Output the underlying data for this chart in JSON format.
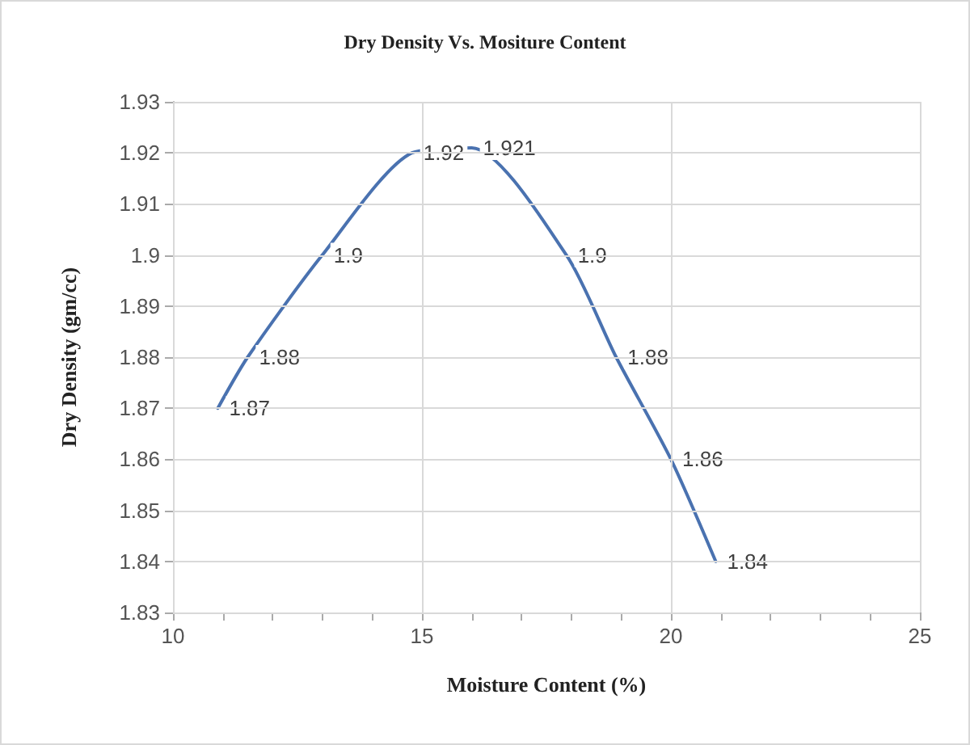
{
  "chart_data": {
    "type": "line",
    "title": "Dry Density Vs. Mositure Content",
    "xlabel": "Moisture Content (%)",
    "ylabel": "Dry Density (gm/cc)",
    "x": [
      10.9,
      11.5,
      13.0,
      14.8,
      16.0,
      17.9,
      18.9,
      20.0,
      20.9
    ],
    "series": [
      {
        "color": "#4a72b0",
        "values": [
          1.87,
          1.88,
          1.9,
          1.92,
          1.921,
          1.9,
          1.88,
          1.86,
          1.84
        ]
      }
    ],
    "xlim": [
      10,
      25
    ],
    "xticks": [
      10,
      {
        "value": 11,
        "label": null
      },
      {
        "value": 12,
        "label": null
      },
      {
        "value": 13,
        "label": null
      },
      {
        "value": 14,
        "label": null
      },
      15,
      {
        "value": 16,
        "label": null
      },
      {
        "value": 17,
        "label": null
      },
      {
        "value": 18,
        "label": null
      },
      {
        "value": 19,
        "label": null
      },
      20,
      {
        "value": 21,
        "label": null
      },
      {
        "value": 22,
        "label": null
      },
      {
        "value": 23,
        "label": null
      },
      {
        "value": 24,
        "label": null
      },
      25
    ],
    "ylim": [
      1.83,
      1.93
    ],
    "yticks": [
      1.83,
      1.84,
      1.85,
      1.86,
      1.87,
      1.88,
      1.89,
      1.9,
      1.91,
      1.92,
      1.93
    ],
    "grid": true,
    "data_labels": true,
    "marker": "none",
    "line_style": "solid"
  }
}
